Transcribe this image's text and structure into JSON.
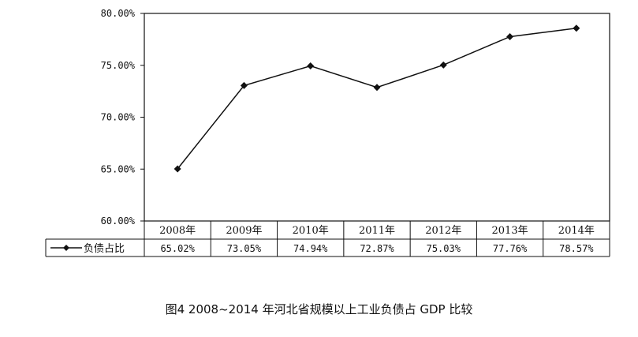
{
  "chart_data": {
    "type": "line",
    "categories": [
      "2008年",
      "2009年",
      "2010年",
      "2011年",
      "2012年",
      "2013年",
      "2014年"
    ],
    "series": [
      {
        "name": "负债占比",
        "values": [
          65.02,
          73.05,
          74.94,
          72.87,
          75.03,
          77.76,
          78.57
        ],
        "labels": [
          "65.02%",
          "73.05%",
          "74.94%",
          "72.87%",
          "75.03%",
          "77.76%",
          "78.57%"
        ],
        "color": "#111111",
        "marker": "diamond"
      }
    ],
    "ylim": [
      60,
      80
    ],
    "yticks": [
      60,
      65,
      70,
      75,
      80
    ],
    "ytick_labels": [
      "60.00%",
      "65.00%",
      "70.00%",
      "75.00%",
      "80.00%"
    ],
    "grid": false,
    "legend": "data-table-left"
  },
  "caption": "图4   2008~2014 年河北省规模以上工业负债占 GDP 比较"
}
